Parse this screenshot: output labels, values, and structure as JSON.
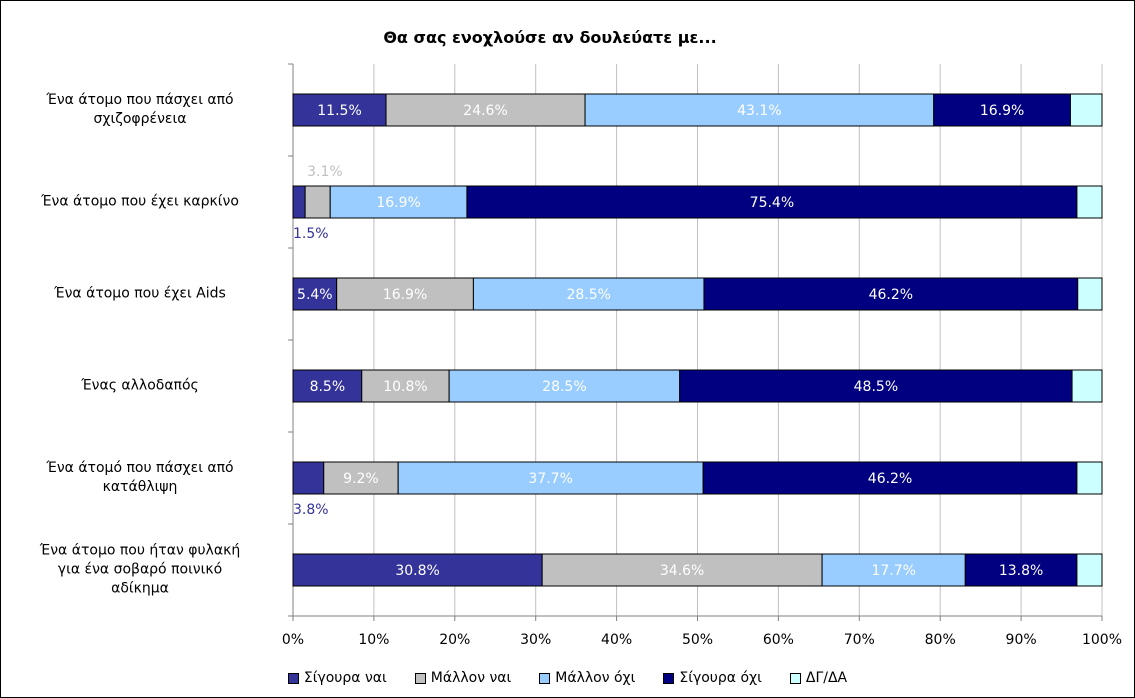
{
  "chart_data": {
    "type": "bar",
    "orientation": "horizontal",
    "stacked": true,
    "normalized": true,
    "title": "Θα σας ενοχλούσε αν δουλεύατε με...",
    "xlim": [
      0,
      100
    ],
    "x_ticks": [
      "0%",
      "10%",
      "20%",
      "30%",
      "40%",
      "50%",
      "60%",
      "70%",
      "80%",
      "90%",
      "100%"
    ],
    "grid": true,
    "legend_position": "bottom",
    "categories": [
      "Ένα άτομο που πάσχει από σχιζοφρένεια",
      "Ένα άτομο που έχει καρκίνο",
      "Ένα άτομο που έχει Aids",
      "Ένας αλλοδαπός",
      "Ένα άτομό που πάσχει από κατάθλιψη",
      "Ένα άτομο που ήταν φυλακή για ένα σοβαρό ποινικό αδίκημα"
    ],
    "category_lines": [
      [
        "Ένα άτομο που πάσχει από",
        "σχιζοφρένεια"
      ],
      [
        "Ένα άτομο που έχει καρκίνο"
      ],
      [
        "Ένα άτομο που έχει Aids"
      ],
      [
        "Ένας αλλοδαπός"
      ],
      [
        "Ένα άτομό που πάσχει από",
        "κατάθλιψη"
      ],
      [
        "Ένα άτομο που ήταν φυλακή",
        "για ένα σοβαρό ποινικό",
        "αδίκημα"
      ]
    ],
    "series": [
      {
        "name": "Σίγουρα ναι",
        "color": "#333399",
        "label_color": "#ffffff",
        "values": [
          11.5,
          1.5,
          5.4,
          8.5,
          3.8,
          30.8
        ],
        "labels": [
          "11.5%",
          "1.5%",
          "5.4%",
          "8.5%",
          "3.8%",
          "30.8%"
        ]
      },
      {
        "name": "Μάλλον ναι",
        "color": "#c0c0c0",
        "label_color": "#ffffff",
        "values": [
          24.6,
          3.1,
          16.9,
          10.8,
          9.2,
          34.6
        ],
        "labels": [
          "24.6%",
          "3.1%",
          "16.9%",
          "10.8%",
          "9.2%",
          "34.6%"
        ]
      },
      {
        "name": "Μάλλον όχι",
        "color": "#99ccff",
        "label_color": "#ffffff",
        "values": [
          43.1,
          16.9,
          28.5,
          28.5,
          37.7,
          17.7
        ],
        "labels": [
          "43.1%",
          "16.9%",
          "28.5%",
          "28.5%",
          "37.7%",
          "17.7%"
        ]
      },
      {
        "name": "Σίγουρα όχι",
        "color": "#000080",
        "label_color": "#ffffff",
        "values": [
          16.9,
          75.4,
          46.2,
          48.5,
          46.2,
          13.8
        ],
        "labels": [
          "16.9%",
          "75.4%",
          "46.2%",
          "48.5%",
          "46.2%",
          "13.8%"
        ]
      },
      {
        "name": "ΔΓ/ΔΑ",
        "color": "#ccffff",
        "label_color": "#ffffff",
        "values": [
          3.9,
          3.1,
          3.0,
          3.7,
          3.1,
          3.1
        ],
        "labels": [
          "",
          "",
          "",
          "",
          "",
          ""
        ]
      }
    ],
    "outside_labels": [
      {
        "category": 1,
        "series": 1,
        "position": "above"
      },
      {
        "category": 1,
        "series": 0,
        "position": "below"
      },
      {
        "category": 4,
        "series": 0,
        "position": "below"
      }
    ],
    "outside_label_colors": {
      "Σίγουρα ναι": "#333399",
      "Μάλλον ναι": "#c0c0c0"
    }
  }
}
